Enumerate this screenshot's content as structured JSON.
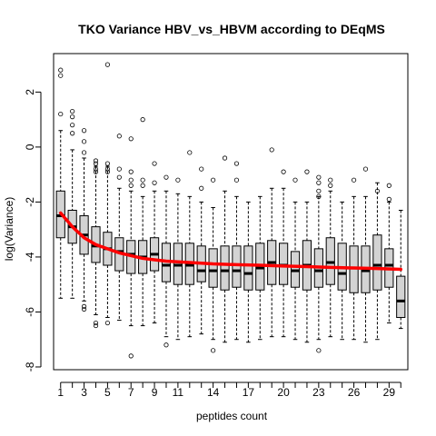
{
  "chart_data": {
    "type": "box",
    "title": "TKO Variance HBV_vs_HBVM according to DEqMS",
    "xlabel": "peptides count",
    "ylabel": "log(Variance)",
    "ylim": [
      -8.1,
      3.4
    ],
    "y_ticks": [
      -8,
      -6,
      -4,
      -2,
      0,
      2
    ],
    "x_tick_labels": [
      "1",
      "3",
      "5",
      "7",
      "9",
      "11",
      "14",
      "17",
      "20",
      "23",
      "26",
      "29"
    ],
    "x_tick_positions": [
      1,
      3,
      5,
      7,
      9,
      11,
      14,
      17,
      20,
      23,
      26,
      29
    ],
    "box_color": "#d3d3d3",
    "fit_color": "#ff0000",
    "boxes": [
      {
        "x": 1,
        "q1": -3.3,
        "median": -2.5,
        "q3": -1.6,
        "whisker_low": -5.5,
        "whisker_high": 0.6,
        "outliers": [
          1.2,
          2.6,
          2.8
        ]
      },
      {
        "x": 2,
        "q1": -3.5,
        "median": -2.9,
        "q3": -2.3,
        "whisker_low": -5.5,
        "whisker_high": -0.1,
        "outliers": [
          0.5,
          0.8,
          1.1,
          1.3
        ]
      },
      {
        "x": 3,
        "q1": -3.9,
        "median": -3.2,
        "q3": -2.5,
        "whisker_low": -5.6,
        "whisker_high": -0.4,
        "outliers": [
          -0.2,
          0.2,
          0.6,
          -5.8,
          -5.9
        ]
      },
      {
        "x": 4,
        "q1": -4.2,
        "median": -3.6,
        "q3": -2.9,
        "whisker_low": -6.1,
        "whisker_high": -0.7,
        "outliers": [
          -0.5,
          -0.6,
          -0.8,
          -0.9,
          -6.4,
          -6.5
        ]
      },
      {
        "x": 5,
        "q1": -4.3,
        "median": -3.7,
        "q3": -3.1,
        "whisker_low": -6.2,
        "whisker_high": -0.7,
        "outliers": [
          -0.6,
          -0.8,
          -0.9,
          3.0,
          -6.4
        ]
      },
      {
        "x": 6,
        "q1": -4.5,
        "median": -3.8,
        "q3": -3.3,
        "whisker_low": -6.3,
        "whisker_high": -1.5,
        "outliers": [
          -0.8,
          -1.1,
          0.4
        ]
      },
      {
        "x": 7,
        "q1": -4.6,
        "median": -3.9,
        "q3": -3.4,
        "whisker_low": -6.5,
        "whisker_high": -1.6,
        "outliers": [
          -0.9,
          -1.2,
          -1.4,
          0.3,
          -7.6
        ]
      },
      {
        "x": 8,
        "q1": -4.6,
        "median": -4.0,
        "q3": -3.4,
        "whisker_low": -6.5,
        "whisker_high": -1.8,
        "outliers": [
          -1.2,
          -1.4,
          1.0
        ]
      },
      {
        "x": 9,
        "q1": -4.5,
        "median": -3.9,
        "q3": -3.3,
        "whisker_low": -6.4,
        "whisker_high": -1.6,
        "outliers": [
          -0.6,
          -1.3
        ]
      },
      {
        "x": 10,
        "q1": -4.9,
        "median": -4.3,
        "q3": -3.5,
        "whisker_low": -6.9,
        "whisker_high": -1.6,
        "outliers": [
          -1.1,
          -7.2
        ]
      },
      {
        "x": 11,
        "q1": -5.0,
        "median": -4.3,
        "q3": -3.5,
        "whisker_low": -7.0,
        "whisker_high": -1.7,
        "outliers": [
          -1.2
        ]
      },
      {
        "x": 12,
        "q1": -5.0,
        "median": -4.3,
        "q3": -3.5,
        "whisker_low": -6.9,
        "whisker_high": -1.8,
        "outliers": [
          -0.2
        ]
      },
      {
        "x": 13,
        "q1": -4.9,
        "median": -4.5,
        "q3": -3.6,
        "whisker_low": -6.8,
        "whisker_high": -2.0,
        "outliers": [
          -0.8,
          -1.5
        ]
      },
      {
        "x": 14,
        "q1": -5.1,
        "median": -4.5,
        "q3": -3.7,
        "whisker_low": -7.0,
        "whisker_high": -2.2,
        "outliers": [
          -1.2,
          -7.4
        ]
      },
      {
        "x": 15,
        "q1": -5.2,
        "median": -4.5,
        "q3": -3.6,
        "whisker_low": -7.1,
        "whisker_high": -1.6,
        "outliers": [
          -0.4
        ]
      },
      {
        "x": 16,
        "q1": -5.1,
        "median": -4.5,
        "q3": -3.6,
        "whisker_low": -7.0,
        "whisker_high": -1.8,
        "outliers": [
          -0.6,
          -1.2
        ]
      },
      {
        "x": 17,
        "q1": -5.2,
        "median": -4.6,
        "q3": -3.6,
        "whisker_low": -7.1,
        "whisker_high": -2.0,
        "outliers": []
      },
      {
        "x": 18,
        "q1": -5.2,
        "median": -4.4,
        "q3": -3.5,
        "whisker_low": -7.0,
        "whisker_high": -1.8,
        "outliers": []
      },
      {
        "x": 19,
        "q1": -5.0,
        "median": -4.2,
        "q3": -3.4,
        "whisker_low": -6.9,
        "whisker_high": -1.5,
        "outliers": [
          -0.1
        ]
      },
      {
        "x": 20,
        "q1": -5.0,
        "median": -4.3,
        "q3": -3.5,
        "whisker_low": -6.9,
        "whisker_high": -1.5,
        "outliers": [
          -0.9
        ]
      },
      {
        "x": 21,
        "q1": -5.1,
        "median": -4.5,
        "q3": -3.8,
        "whisker_low": -7.0,
        "whisker_high": -2.0,
        "outliers": [
          -1.2
        ]
      },
      {
        "x": 22,
        "q1": -5.2,
        "median": -4.3,
        "q3": -3.4,
        "whisker_low": -7.1,
        "whisker_high": -2.0,
        "outliers": [
          -0.9
        ]
      },
      {
        "x": 23,
        "q1": -5.1,
        "median": -4.5,
        "q3": -3.7,
        "whisker_low": -7.0,
        "whisker_high": -1.8,
        "outliers": [
          -1.1,
          -1.3,
          -1.6,
          -1.8,
          -7.4
        ]
      },
      {
        "x": 24,
        "q1": -5.0,
        "median": -4.2,
        "q3": -3.3,
        "whisker_low": -6.9,
        "whisker_high": -1.6,
        "outliers": [
          -1.2,
          -1.4
        ]
      },
      {
        "x": 25,
        "q1": -5.2,
        "median": -4.6,
        "q3": -3.5,
        "whisker_low": -7.0,
        "whisker_high": -2.0,
        "outliers": []
      },
      {
        "x": 26,
        "q1": -5.3,
        "median": -4.4,
        "q3": -3.6,
        "whisker_low": -7.0,
        "whisker_high": -1.8,
        "outliers": [
          -1.2
        ]
      },
      {
        "x": 27,
        "q1": -5.3,
        "median": -4.5,
        "q3": -3.6,
        "whisker_low": -7.1,
        "whisker_high": -1.8,
        "outliers": [
          -0.8
        ]
      },
      {
        "x": 28,
        "q1": -5.2,
        "median": -4.3,
        "q3": -3.2,
        "whisker_low": -7.0,
        "whisker_high": -1.3,
        "outliers": [
          -1.6
        ]
      },
      {
        "x": 29,
        "q1": -5.1,
        "median": -4.3,
        "q3": -3.7,
        "whisker_low": -6.4,
        "whisker_high": -2.0,
        "outliers": [
          -1.4,
          -1.9
        ]
      },
      {
        "x": 30,
        "q1": -6.2,
        "median": -5.6,
        "q3": -4.7,
        "whisker_low": -6.6,
        "whisker_high": -2.3,
        "outliers": []
      }
    ],
    "fit_line": {
      "x": [
        1,
        2,
        3,
        4,
        5,
        6,
        7,
        8,
        9,
        10,
        12,
        14,
        16,
        18,
        20,
        22,
        24,
        26,
        28,
        30
      ],
      "y": [
        -2.4,
        -2.9,
        -3.3,
        -3.55,
        -3.7,
        -3.85,
        -3.95,
        -4.05,
        -4.1,
        -4.15,
        -4.2,
        -4.25,
        -4.28,
        -4.3,
        -4.33,
        -4.35,
        -4.38,
        -4.4,
        -4.42,
        -4.45
      ]
    }
  }
}
